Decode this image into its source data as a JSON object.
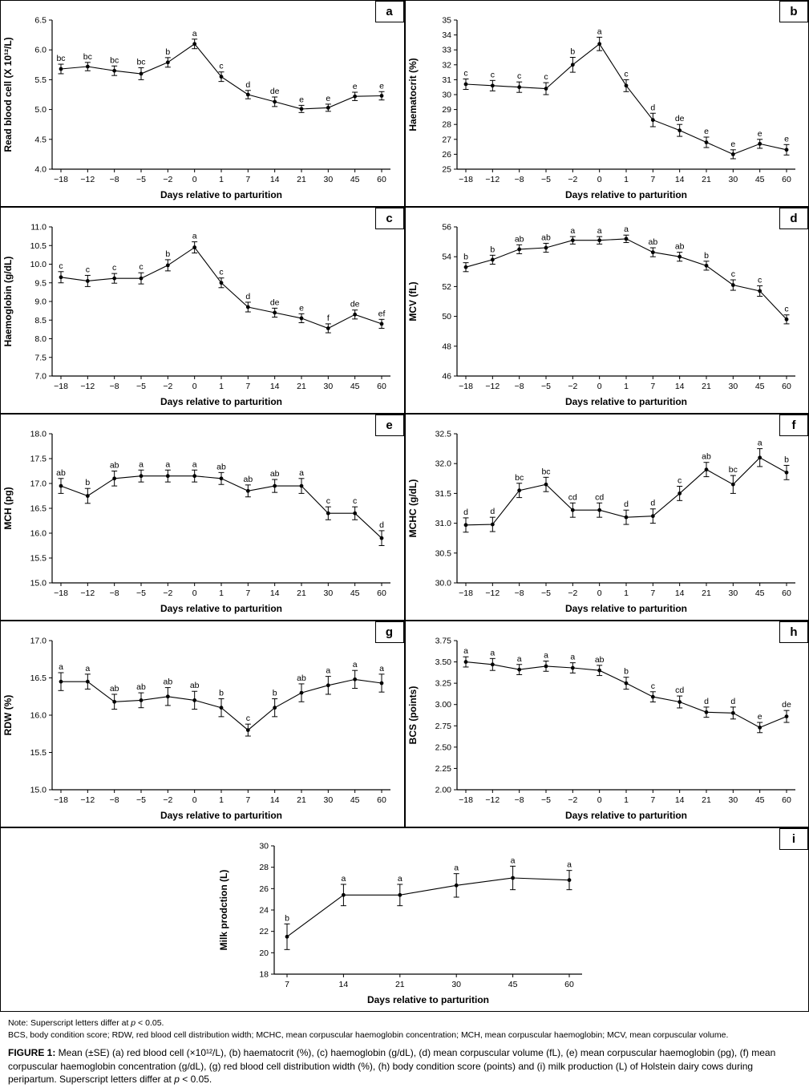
{
  "figure": {
    "shared_xlabel": "Days relative to parturition"
  },
  "notes": {
    "note_prefix": "Note: Superscript letters differ at ",
    "note_p": "p",
    "note_suffix": " < 0.05.",
    "abbreviations": "BCS, body condition score; RDW, red blood cell distribution width; MCHC, mean corpuscular haemoglobin concentration; MCH, mean corpuscular haemoglobin; MCV, mean corpuscular volume.",
    "figure_label": "FIGURE 1:",
    "figure_text": " Mean (±SE) (a) red blood cell (×10¹²/L), (b) haematocrit (%), (c) haemoglobin (g/dL), (d) mean corpuscular volume (fL), (e) mean corpuscular haemoglobin (pg), (f) mean corpuscular haemoglobin concentration (g/dL), (g) red blood cell distribution width (%), (h) body condition score (points) and (i) milk production (L) of Holstein dairy cows during peripartum. Superscript letters differ at ",
    "figure_p": "p",
    "figure_suffix": " < 0.05."
  },
  "chart_data": [
    {
      "id": "a",
      "type": "line",
      "ylabel": "Read blood cell (X 10¹²/L)",
      "xlabel": "Days relative to parturition",
      "categories": [
        "−18",
        "−12",
        "−8",
        "−5",
        "−2",
        "0",
        "1",
        "7",
        "14",
        "21",
        "30",
        "45",
        "60"
      ],
      "values": [
        5.68,
        5.72,
        5.65,
        5.6,
        5.79,
        6.1,
        5.55,
        5.25,
        5.13,
        5.01,
        5.03,
        5.22,
        5.23
      ],
      "errors": [
        0.08,
        0.07,
        0.08,
        0.1,
        0.08,
        0.08,
        0.08,
        0.07,
        0.08,
        0.06,
        0.06,
        0.07,
        0.07
      ],
      "letters": [
        "bc",
        "bc",
        "bc",
        "bc",
        "b",
        "a",
        "c",
        "d",
        "de",
        "e",
        "e",
        "e",
        "e"
      ],
      "ylim": [
        4.0,
        6.5
      ],
      "ytick_step": 0.5,
      "ytick_decimals": 1
    },
    {
      "id": "b",
      "type": "line",
      "ylabel": "Haematocrit (%)",
      "xlabel": "Days relative to parturition",
      "categories": [
        "−18",
        "−12",
        "−8",
        "−5",
        "−2",
        "0",
        "1",
        "7",
        "14",
        "21",
        "30",
        "45",
        "60"
      ],
      "values": [
        30.7,
        30.6,
        30.5,
        30.4,
        32.0,
        33.4,
        30.6,
        28.3,
        27.6,
        26.8,
        26.0,
        26.7,
        26.3
      ],
      "errors": [
        0.35,
        0.35,
        0.35,
        0.4,
        0.5,
        0.45,
        0.4,
        0.45,
        0.4,
        0.35,
        0.3,
        0.3,
        0.35
      ],
      "letters": [
        "c",
        "c",
        "c",
        "c",
        "b",
        "a",
        "c",
        "d",
        "de",
        "e",
        "e",
        "e",
        "e"
      ],
      "ylim": [
        25,
        35
      ],
      "ytick_step": 1,
      "ytick_decimals": 0
    },
    {
      "id": "c",
      "type": "line",
      "ylabel": "Haemoglobin (g/dL)",
      "xlabel": "Days relative to parturition",
      "categories": [
        "−18",
        "−12",
        "−8",
        "−5",
        "−2",
        "0",
        "1",
        "7",
        "14",
        "21",
        "30",
        "45",
        "60"
      ],
      "values": [
        9.65,
        9.55,
        9.62,
        9.62,
        9.97,
        10.45,
        9.5,
        8.85,
        8.7,
        8.55,
        8.28,
        8.65,
        8.4
      ],
      "errors": [
        0.15,
        0.15,
        0.13,
        0.15,
        0.15,
        0.15,
        0.13,
        0.13,
        0.12,
        0.12,
        0.12,
        0.12,
        0.12
      ],
      "letters": [
        "c",
        "c",
        "c",
        "c",
        "b",
        "a",
        "c",
        "d",
        "de",
        "e",
        "f",
        "de",
        "ef"
      ],
      "ylim": [
        7.0,
        11.0
      ],
      "ytick_step": 0.5,
      "ytick_decimals": 1
    },
    {
      "id": "d",
      "type": "line",
      "ylabel": "MCV (fL)",
      "xlabel": "Days relative to parturition",
      "categories": [
        "−18",
        "−12",
        "−8",
        "−5",
        "−2",
        "0",
        "1",
        "7",
        "14",
        "21",
        "30",
        "45",
        "60"
      ],
      "values": [
        53.3,
        53.8,
        54.5,
        54.6,
        55.1,
        55.1,
        55.2,
        54.3,
        54.0,
        53.4,
        52.1,
        51.7,
        49.8
      ],
      "errors": [
        0.3,
        0.3,
        0.3,
        0.3,
        0.25,
        0.25,
        0.25,
        0.3,
        0.3,
        0.3,
        0.35,
        0.35,
        0.3
      ],
      "letters": [
        "b",
        "b",
        "ab",
        "ab",
        "a",
        "a",
        "a",
        "ab",
        "ab",
        "b",
        "c",
        "c",
        "c"
      ],
      "ylim": [
        46,
        56
      ],
      "ytick_step": 2,
      "ytick_decimals": 0
    },
    {
      "id": "e",
      "type": "line",
      "ylabel": "MCH (pg)",
      "xlabel": "Days relative to parturition",
      "categories": [
        "−18",
        "−12",
        "−8",
        "−5",
        "−2",
        "0",
        "1",
        "7",
        "14",
        "21",
        "30",
        "45",
        "60"
      ],
      "values": [
        16.95,
        16.75,
        17.1,
        17.15,
        17.15,
        17.15,
        17.1,
        16.85,
        16.95,
        16.95,
        16.4,
        16.4,
        15.9
      ],
      "errors": [
        0.15,
        0.15,
        0.15,
        0.12,
        0.12,
        0.12,
        0.12,
        0.12,
        0.13,
        0.15,
        0.13,
        0.13,
        0.15
      ],
      "letters": [
        "ab",
        "b",
        "ab",
        "a",
        "a",
        "a",
        "ab",
        "ab",
        "ab",
        "a",
        "c",
        "c",
        "d"
      ],
      "ylim": [
        15.0,
        18.0
      ],
      "ytick_step": 0.5,
      "ytick_decimals": 1
    },
    {
      "id": "f",
      "type": "line",
      "ylabel": "MCHC (g/dL)",
      "xlabel": "Days relative to parturition",
      "categories": [
        "−18",
        "−12",
        "−8",
        "−5",
        "−2",
        "0",
        "1",
        "7",
        "14",
        "21",
        "30",
        "45",
        "60"
      ],
      "values": [
        30.97,
        30.98,
        31.55,
        31.65,
        31.22,
        31.22,
        31.1,
        31.12,
        31.5,
        31.9,
        31.65,
        32.1,
        31.85
      ],
      "errors": [
        0.12,
        0.12,
        0.12,
        0.12,
        0.12,
        0.12,
        0.12,
        0.12,
        0.12,
        0.12,
        0.15,
        0.15,
        0.12
      ],
      "letters": [
        "d",
        "d",
        "bc",
        "bc",
        "cd",
        "cd",
        "d",
        "d",
        "c",
        "ab",
        "bc",
        "a",
        "b"
      ],
      "ylim": [
        30.0,
        32.5
      ],
      "ytick_step": 0.5,
      "ytick_decimals": 1
    },
    {
      "id": "g",
      "type": "line",
      "ylabel": "RDW (%)",
      "xlabel": "Days relative to parturition",
      "categories": [
        "−18",
        "−12",
        "−8",
        "−5",
        "−2",
        "0",
        "1",
        "7",
        "14",
        "21",
        "30",
        "45",
        "60"
      ],
      "values": [
        16.45,
        16.45,
        16.18,
        16.2,
        16.25,
        16.2,
        16.1,
        15.8,
        16.1,
        16.3,
        16.4,
        16.48,
        16.43
      ],
      "errors": [
        0.12,
        0.1,
        0.1,
        0.1,
        0.12,
        0.12,
        0.12,
        0.08,
        0.12,
        0.12,
        0.12,
        0.12,
        0.12
      ],
      "letters": [
        "a",
        "a",
        "ab",
        "ab",
        "ab",
        "ab",
        "b",
        "c",
        "b",
        "ab",
        "a",
        "a",
        "a"
      ],
      "ylim": [
        15.0,
        17.0
      ],
      "ytick_step": 0.5,
      "ytick_decimals": 1
    },
    {
      "id": "h",
      "type": "line",
      "ylabel": "BCS (points)",
      "xlabel": "Days relative to parturition",
      "categories": [
        "−18",
        "−12",
        "−8",
        "−5",
        "−2",
        "0",
        "1",
        "7",
        "14",
        "21",
        "30",
        "45",
        "60"
      ],
      "values": [
        3.5,
        3.47,
        3.41,
        3.45,
        3.43,
        3.4,
        3.25,
        3.09,
        3.03,
        2.91,
        2.9,
        2.73,
        2.86
      ],
      "errors": [
        0.06,
        0.07,
        0.06,
        0.06,
        0.06,
        0.06,
        0.07,
        0.06,
        0.07,
        0.06,
        0.07,
        0.06,
        0.07
      ],
      "letters": [
        "a",
        "a",
        "a",
        "a",
        "a",
        "ab",
        "b",
        "c",
        "cd",
        "d",
        "d",
        "e",
        "de"
      ],
      "ylim": [
        2.0,
        3.75
      ],
      "ytick_step": 0.25,
      "ytick_decimals": 2
    },
    {
      "id": "i",
      "type": "line",
      "ylabel": "Milk prodction (L)",
      "xlabel": "Days relative to parturition",
      "categories": [
        "7",
        "14",
        "21",
        "30",
        "45",
        "60"
      ],
      "values": [
        21.5,
        25.4,
        25.4,
        26.3,
        27.0,
        26.8
      ],
      "errors": [
        1.2,
        1.0,
        1.0,
        1.1,
        1.1,
        0.9
      ],
      "letters": [
        "b",
        "a",
        "a",
        "a",
        "a",
        "a"
      ],
      "ylim": [
        18,
        30
      ],
      "ytick_step": 2,
      "ytick_decimals": 0
    }
  ]
}
